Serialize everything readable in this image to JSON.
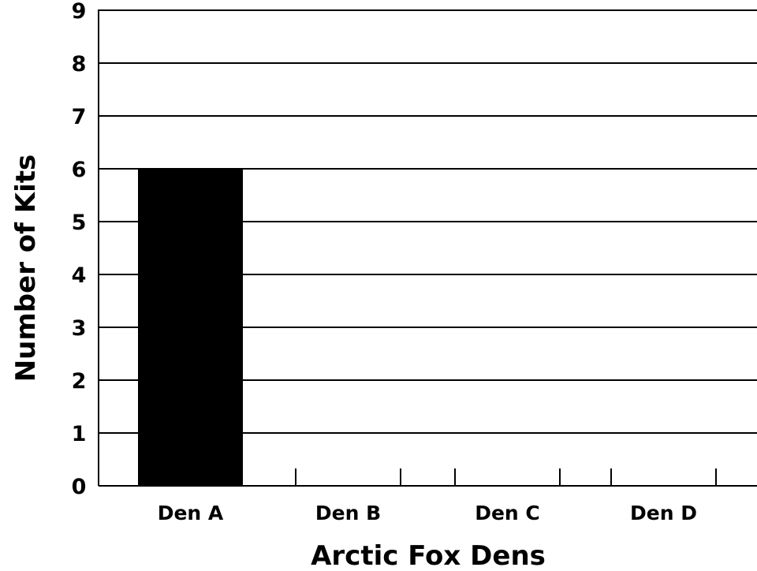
{
  "chart_data": {
    "type": "bar",
    "categories": [
      "Den A",
      "Den B",
      "Den C",
      "Den D"
    ],
    "values": [
      6,
      null,
      null,
      null
    ],
    "title": "",
    "xlabel": "Arctic Fox Dens",
    "ylabel": "Number of Kits",
    "ylim": [
      0,
      9
    ],
    "yticks": [
      "0",
      "1",
      "2",
      "3",
      "4",
      "5",
      "6",
      "7",
      "8",
      "9"
    ],
    "grid": true,
    "bar_color": "#000000"
  }
}
